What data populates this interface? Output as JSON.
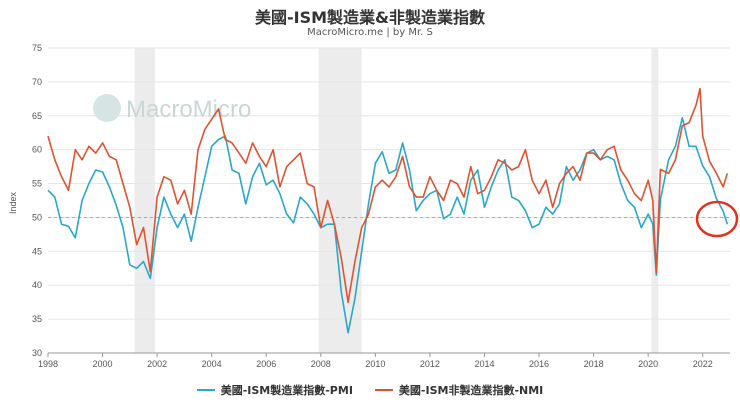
{
  "chart_data": {
    "type": "line",
    "title": "美國-ISM製造業&非製造業指數",
    "subtitle": "MacroMicro.me | by Mr. S",
    "watermark": "MacroMicro",
    "ylabel": "Index",
    "xlabel": "",
    "ylim": [
      30,
      75
    ],
    "yticks": [
      30,
      35,
      40,
      45,
      50,
      55,
      60,
      65,
      70,
      75
    ],
    "xlim": [
      1998,
      2023
    ],
    "xticks": [
      "1998",
      "2000",
      "2002",
      "2004",
      "2006",
      "2008",
      "2010",
      "2012",
      "2014",
      "2016",
      "2018",
      "2020",
      "2022"
    ],
    "reference_line": 50,
    "recessions": [
      [
        2001.17,
        2001.92
      ],
      [
        2007.92,
        2009.5
      ],
      [
        2020.12,
        2020.37
      ]
    ],
    "annotation": "red circle highlighting latest PMI falling below 50",
    "series": [
      {
        "name": "美國-ISM製造業指數-PMI",
        "color": "#2aa7c9",
        "points": [
          [
            1998.0,
            54.0
          ],
          [
            1998.25,
            53.0
          ],
          [
            1998.5,
            49.0
          ],
          [
            1998.75,
            48.7
          ],
          [
            1999.0,
            47.0
          ],
          [
            1999.25,
            52.5
          ],
          [
            1999.5,
            55.0
          ],
          [
            1999.75,
            57.0
          ],
          [
            2000.0,
            56.7
          ],
          [
            2000.25,
            54.5
          ],
          [
            2000.5,
            51.8
          ],
          [
            2000.75,
            48.5
          ],
          [
            2001.0,
            43.0
          ],
          [
            2001.25,
            42.5
          ],
          [
            2001.5,
            43.5
          ],
          [
            2001.75,
            41.0
          ],
          [
            2002.0,
            48.5
          ],
          [
            2002.25,
            53.0
          ],
          [
            2002.5,
            50.5
          ],
          [
            2002.75,
            48.5
          ],
          [
            2003.0,
            50.5
          ],
          [
            2003.25,
            46.5
          ],
          [
            2003.5,
            51.5
          ],
          [
            2003.75,
            56.0
          ],
          [
            2004.0,
            60.5
          ],
          [
            2004.25,
            61.5
          ],
          [
            2004.5,
            62.0
          ],
          [
            2004.75,
            57.0
          ],
          [
            2005.0,
            56.5
          ],
          [
            2005.25,
            52.0
          ],
          [
            2005.5,
            56.0
          ],
          [
            2005.75,
            58.0
          ],
          [
            2006.0,
            54.8
          ],
          [
            2006.25,
            55.5
          ],
          [
            2006.5,
            53.5
          ],
          [
            2006.75,
            50.5
          ],
          [
            2007.0,
            49.2
          ],
          [
            2007.25,
            53.0
          ],
          [
            2007.5,
            52.0
          ],
          [
            2007.75,
            50.5
          ],
          [
            2008.0,
            48.5
          ],
          [
            2008.25,
            49.0
          ],
          [
            2008.5,
            49.0
          ],
          [
            2008.75,
            39.0
          ],
          [
            2009.0,
            33.0
          ],
          [
            2009.25,
            38.0
          ],
          [
            2009.5,
            45.0
          ],
          [
            2009.75,
            52.0
          ],
          [
            2010.0,
            58.0
          ],
          [
            2010.25,
            59.7
          ],
          [
            2010.5,
            56.5
          ],
          [
            2010.75,
            57.0
          ],
          [
            2011.0,
            61.0
          ],
          [
            2011.25,
            57.0
          ],
          [
            2011.5,
            51.0
          ],
          [
            2011.75,
            52.5
          ],
          [
            2012.0,
            53.5
          ],
          [
            2012.25,
            54.0
          ],
          [
            2012.5,
            49.8
          ],
          [
            2012.75,
            50.5
          ],
          [
            2013.0,
            53.0
          ],
          [
            2013.25,
            50.5
          ],
          [
            2013.5,
            55.5
          ],
          [
            2013.75,
            57.0
          ],
          [
            2014.0,
            51.5
          ],
          [
            2014.25,
            54.5
          ],
          [
            2014.5,
            57.0
          ],
          [
            2014.75,
            58.5
          ],
          [
            2015.0,
            53.0
          ],
          [
            2015.25,
            52.5
          ],
          [
            2015.5,
            51.0
          ],
          [
            2015.75,
            48.5
          ],
          [
            2016.0,
            49.0
          ],
          [
            2016.25,
            51.5
          ],
          [
            2016.5,
            50.5
          ],
          [
            2016.75,
            52.0
          ],
          [
            2017.0,
            57.5
          ],
          [
            2017.25,
            55.5
          ],
          [
            2017.5,
            57.0
          ],
          [
            2017.75,
            59.5
          ],
          [
            2018.0,
            60.0
          ],
          [
            2018.25,
            58.5
          ],
          [
            2018.5,
            59.0
          ],
          [
            2018.75,
            58.5
          ],
          [
            2019.0,
            55.0
          ],
          [
            2019.25,
            52.5
          ],
          [
            2019.5,
            51.5
          ],
          [
            2019.75,
            48.5
          ],
          [
            2020.0,
            50.5
          ],
          [
            2020.17,
            49.0
          ],
          [
            2020.3,
            41.5
          ],
          [
            2020.45,
            52.6
          ],
          [
            2020.75,
            58.5
          ],
          [
            2021.0,
            60.5
          ],
          [
            2021.25,
            64.7
          ],
          [
            2021.5,
            60.5
          ],
          [
            2021.75,
            60.5
          ],
          [
            2022.0,
            57.6
          ],
          [
            2022.25,
            56.0
          ],
          [
            2022.5,
            52.8
          ],
          [
            2022.75,
            50.9
          ],
          [
            2022.9,
            49.0
          ]
        ]
      },
      {
        "name": "美國-ISM非製造業指數-NMI",
        "color": "#e05330",
        "points": [
          [
            1998.0,
            62.0
          ],
          [
            1998.25,
            58.5
          ],
          [
            1998.5,
            56.0
          ],
          [
            1998.75,
            54.0
          ],
          [
            1999.0,
            60.0
          ],
          [
            1999.25,
            58.5
          ],
          [
            1999.5,
            60.5
          ],
          [
            1999.75,
            59.5
          ],
          [
            2000.0,
            61.0
          ],
          [
            2000.25,
            59.0
          ],
          [
            2000.5,
            58.5
          ],
          [
            2000.75,
            55.0
          ],
          [
            2001.0,
            51.5
          ],
          [
            2001.25,
            46.0
          ],
          [
            2001.5,
            48.5
          ],
          [
            2001.75,
            42.0
          ],
          [
            2002.0,
            53.0
          ],
          [
            2002.25,
            56.0
          ],
          [
            2002.5,
            55.5
          ],
          [
            2002.75,
            52.0
          ],
          [
            2003.0,
            54.0
          ],
          [
            2003.25,
            50.5
          ],
          [
            2003.5,
            60.0
          ],
          [
            2003.75,
            63.0
          ],
          [
            2004.0,
            64.5
          ],
          [
            2004.25,
            66.0
          ],
          [
            2004.5,
            61.5
          ],
          [
            2004.75,
            61.0
          ],
          [
            2005.0,
            59.5
          ],
          [
            2005.25,
            58.0
          ],
          [
            2005.5,
            61.0
          ],
          [
            2005.75,
            59.0
          ],
          [
            2006.0,
            57.5
          ],
          [
            2006.25,
            60.0
          ],
          [
            2006.5,
            54.5
          ],
          [
            2006.75,
            57.5
          ],
          [
            2007.0,
            58.5
          ],
          [
            2007.25,
            59.5
          ],
          [
            2007.5,
            55.0
          ],
          [
            2007.75,
            54.5
          ],
          [
            2008.0,
            48.5
          ],
          [
            2008.25,
            52.5
          ],
          [
            2008.5,
            49.0
          ],
          [
            2008.75,
            44.0
          ],
          [
            2009.0,
            37.5
          ],
          [
            2009.25,
            43.5
          ],
          [
            2009.5,
            48.5
          ],
          [
            2009.75,
            50.5
          ],
          [
            2010.0,
            54.5
          ],
          [
            2010.25,
            55.5
          ],
          [
            2010.5,
            54.5
          ],
          [
            2010.75,
            56.0
          ],
          [
            2011.0,
            59.0
          ],
          [
            2011.25,
            54.5
          ],
          [
            2011.5,
            53.0
          ],
          [
            2011.75,
            53.0
          ],
          [
            2012.0,
            56.0
          ],
          [
            2012.25,
            54.0
          ],
          [
            2012.5,
            52.5
          ],
          [
            2012.75,
            55.5
          ],
          [
            2013.0,
            55.0
          ],
          [
            2013.25,
            53.0
          ],
          [
            2013.5,
            57.5
          ],
          [
            2013.75,
            53.5
          ],
          [
            2014.0,
            54.0
          ],
          [
            2014.25,
            56.0
          ],
          [
            2014.5,
            58.5
          ],
          [
            2014.75,
            58.0
          ],
          [
            2015.0,
            57.0
          ],
          [
            2015.25,
            57.5
          ],
          [
            2015.5,
            60.0
          ],
          [
            2015.75,
            55.5
          ],
          [
            2016.0,
            53.5
          ],
          [
            2016.25,
            55.5
          ],
          [
            2016.5,
            51.5
          ],
          [
            2016.75,
            55.0
          ],
          [
            2017.0,
            56.5
          ],
          [
            2017.25,
            57.5
          ],
          [
            2017.5,
            55.5
          ],
          [
            2017.75,
            59.5
          ],
          [
            2018.0,
            59.5
          ],
          [
            2018.25,
            58.5
          ],
          [
            2018.5,
            60.0
          ],
          [
            2018.75,
            60.5
          ],
          [
            2019.0,
            57.0
          ],
          [
            2019.25,
            55.5
          ],
          [
            2019.5,
            53.5
          ],
          [
            2019.75,
            52.5
          ],
          [
            2020.0,
            55.5
          ],
          [
            2020.17,
            52.5
          ],
          [
            2020.3,
            41.8
          ],
          [
            2020.45,
            57.1
          ],
          [
            2020.75,
            56.5
          ],
          [
            2021.0,
            58.5
          ],
          [
            2021.25,
            63.5
          ],
          [
            2021.5,
            64.0
          ],
          [
            2021.75,
            66.5
          ],
          [
            2021.9,
            69.0
          ],
          [
            2022.0,
            62.0
          ],
          [
            2022.25,
            58.3
          ],
          [
            2022.5,
            56.5
          ],
          [
            2022.75,
            54.5
          ],
          [
            2022.9,
            56.5
          ]
        ]
      }
    ]
  }
}
